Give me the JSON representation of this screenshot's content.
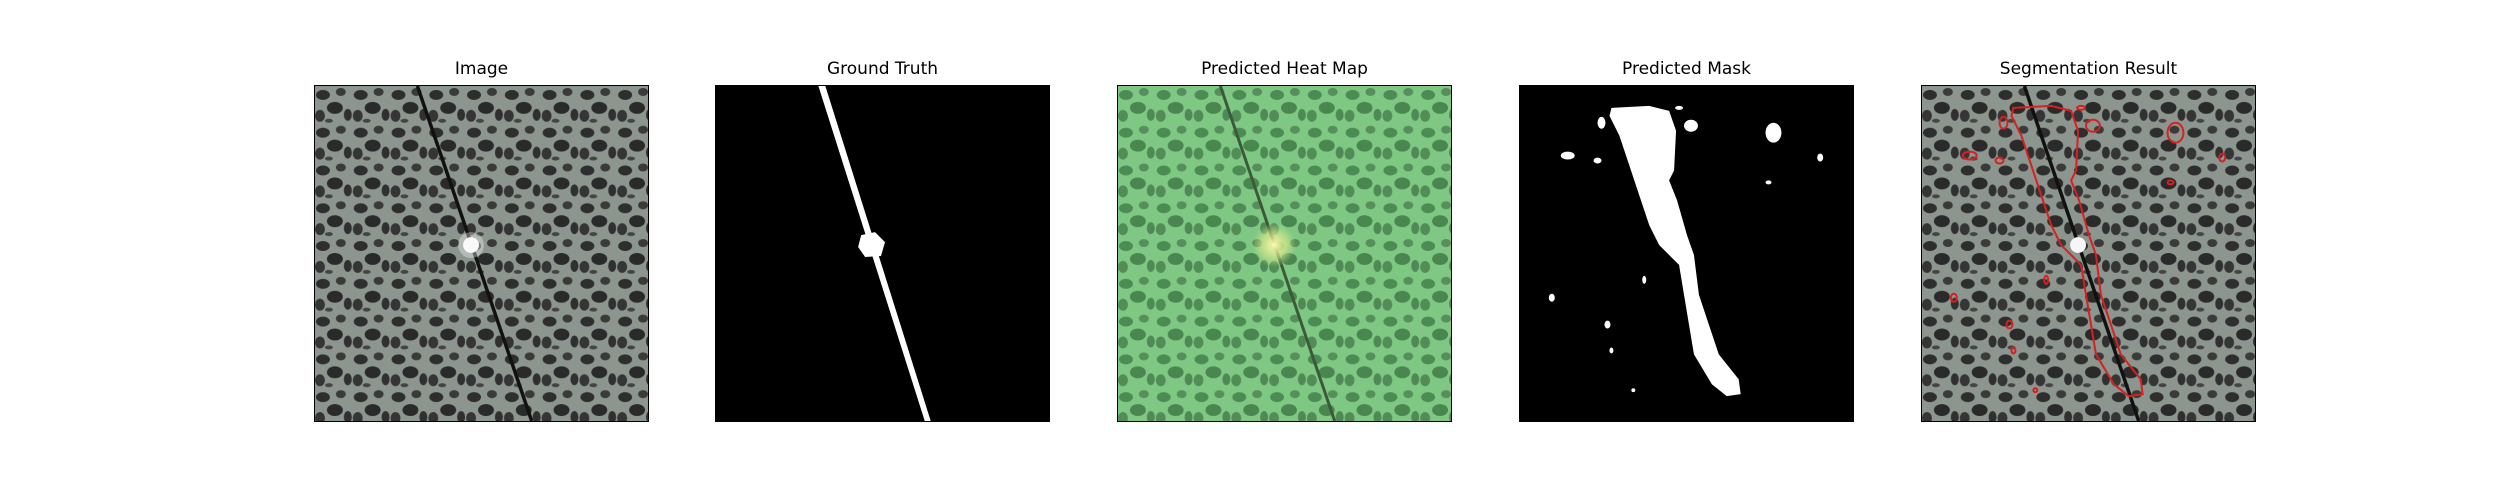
{
  "panels": [
    {
      "title": "Image"
    },
    {
      "title": "Ground Truth"
    },
    {
      "title": "Predicted Heat Map"
    },
    {
      "title": "Predicted Mask"
    },
    {
      "title": "Segmentation Result"
    }
  ],
  "colors": {
    "background": "#ffffff",
    "texture_light": "#8e968f",
    "texture_dark": "#2b2b2b",
    "mask_white": "#ffffff",
    "mask_black": "#000000",
    "heatmap_green": "#6fbf73",
    "contour_red": "#e02020"
  }
}
